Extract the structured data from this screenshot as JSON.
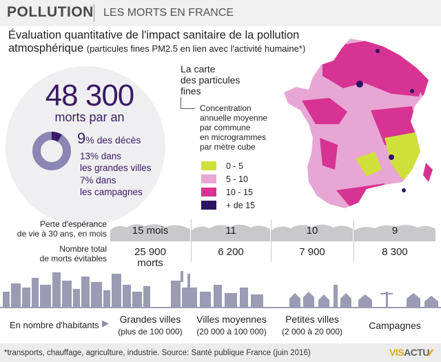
{
  "header": {
    "title": "POLLUTION",
    "subtitle": "LES MORTS EN FRANCE"
  },
  "main_title": {
    "line1": "Évaluation quantitative de l'impact sanitaire de la pollution",
    "line2": "atmosphérique",
    "note": "(particules fines PM2.5 en lien avec l'activité humaine*)"
  },
  "stats": {
    "deaths_number": "48 300",
    "deaths_label": "morts par an",
    "pct_value": "9",
    "pct_label": "% des décès",
    "pct_fraction": 0.09,
    "cities_line1": "13% dans",
    "cities_line2": "les grandes villes",
    "countryside_line1": "7% dans",
    "countryside_line2": "les campagnes"
  },
  "map_legend": {
    "title_l1": "La carte",
    "title_l2": "des particules",
    "title_l3": "fines",
    "desc_l1": "Concentration",
    "desc_l2": "annuelle moyenne",
    "desc_l3": "par commune",
    "desc_l4": "en microgrammes",
    "desc_l5": "par mètre cube",
    "items": [
      {
        "label": "0 - 5",
        "color": "#cfe03a"
      },
      {
        "label": "5 - 10",
        "color": "#e8a6d4"
      },
      {
        "label": "10 - 15",
        "color": "#d63393"
      },
      {
        "label": "+ de 15",
        "color": "#2e1463"
      }
    ]
  },
  "table": {
    "row1_l1": "Perte d'espérance",
    "row1_l2": "de vie à 30 ans, en mois",
    "row2_l1": "Nombre total",
    "row2_l2": "de morts évitables",
    "columns": [
      {
        "life": "15 mois",
        "deaths": "25 900",
        "deaths_unit": "morts"
      },
      {
        "life": "11",
        "deaths": "6 200",
        "deaths_unit": ""
      },
      {
        "life": "10",
        "deaths": "7 900",
        "deaths_unit": ""
      },
      {
        "life": "9",
        "deaths": "8 300",
        "deaths_unit": ""
      }
    ]
  },
  "categories": {
    "hab_label": "En nombre d'habitants",
    "hab_arrow": "▶",
    "items": [
      {
        "name": "Grandes villes",
        "range": "(plus de 100 000)"
      },
      {
        "name": "Villes moyennes",
        "range": "(20 000 à 100 000)"
      },
      {
        "name": "Petites villes",
        "range": "(2 000 à 20 000)"
      },
      {
        "name": "Campagnes",
        "range": ""
      }
    ]
  },
  "footer": {
    "note": "*transports, chauffage, agriculture, industrie. Source: Santé publique France (juin 2016)",
    "logo_part1": "VIS",
    "logo_part2": "ACTU",
    "logo_mark": "⁄⁄"
  },
  "colors": {
    "accent_dark": "#3a1a66",
    "donut_main": "#8c86b4",
    "cloud": "#c9c9cc",
    "skyline": "#9b9bb3"
  }
}
